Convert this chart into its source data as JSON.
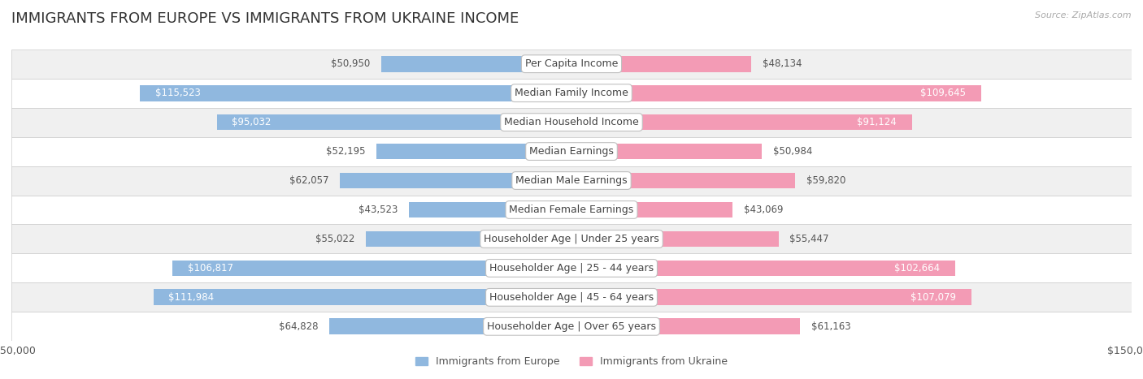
{
  "title": "IMMIGRANTS FROM EUROPE VS IMMIGRANTS FROM UKRAINE INCOME",
  "source": "Source: ZipAtlas.com",
  "categories": [
    "Per Capita Income",
    "Median Family Income",
    "Median Household Income",
    "Median Earnings",
    "Median Male Earnings",
    "Median Female Earnings",
    "Householder Age | Under 25 years",
    "Householder Age | 25 - 44 years",
    "Householder Age | 45 - 64 years",
    "Householder Age | Over 65 years"
  ],
  "europe_values": [
    50950,
    115523,
    95032,
    52195,
    62057,
    43523,
    55022,
    106817,
    111984,
    64828
  ],
  "ukraine_values": [
    48134,
    109645,
    91124,
    50984,
    59820,
    43069,
    55447,
    102664,
    107079,
    61163
  ],
  "europe_color": "#90b8df",
  "ukraine_color": "#f39bb5",
  "europe_label": "Immigrants from Europe",
  "ukraine_label": "Immigrants from Ukraine",
  "axis_limit": 150000,
  "background_color": "#ffffff",
  "row_bg_light": "#f0f0f0",
  "row_bg_white": "#ffffff",
  "title_fontsize": 13,
  "label_fontsize": 8.5,
  "category_fontsize": 9,
  "axis_fontsize": 9,
  "legend_fontsize": 9,
  "threshold_inside": 75000
}
